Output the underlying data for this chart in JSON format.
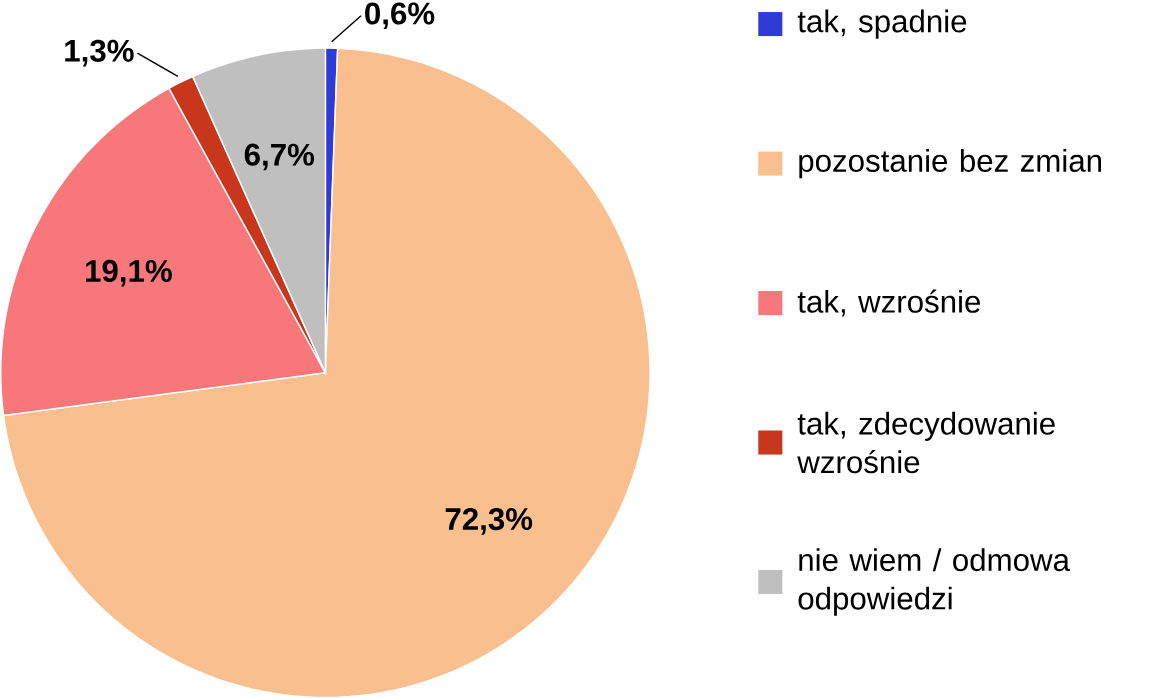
{
  "chart_data": {
    "type": "pie",
    "categories": [
      "tak, spadnie",
      "pozostanie bez zmian",
      "tak, wzrośnie",
      "tak, zdecydowanie wzrośnie",
      "nie wiem / odmowa odpowiedzi"
    ],
    "values": [
      0.6,
      72.3,
      19.1,
      1.3,
      6.7
    ],
    "value_labels": [
      "0,6%",
      "72,3%",
      "19,1%",
      "1,3%",
      "6,7%"
    ],
    "colors": [
      "#2f3bd6",
      "#f9bf8f",
      "#f7777a",
      "#c8361c",
      "#bfbfbf"
    ],
    "legend": "right"
  }
}
